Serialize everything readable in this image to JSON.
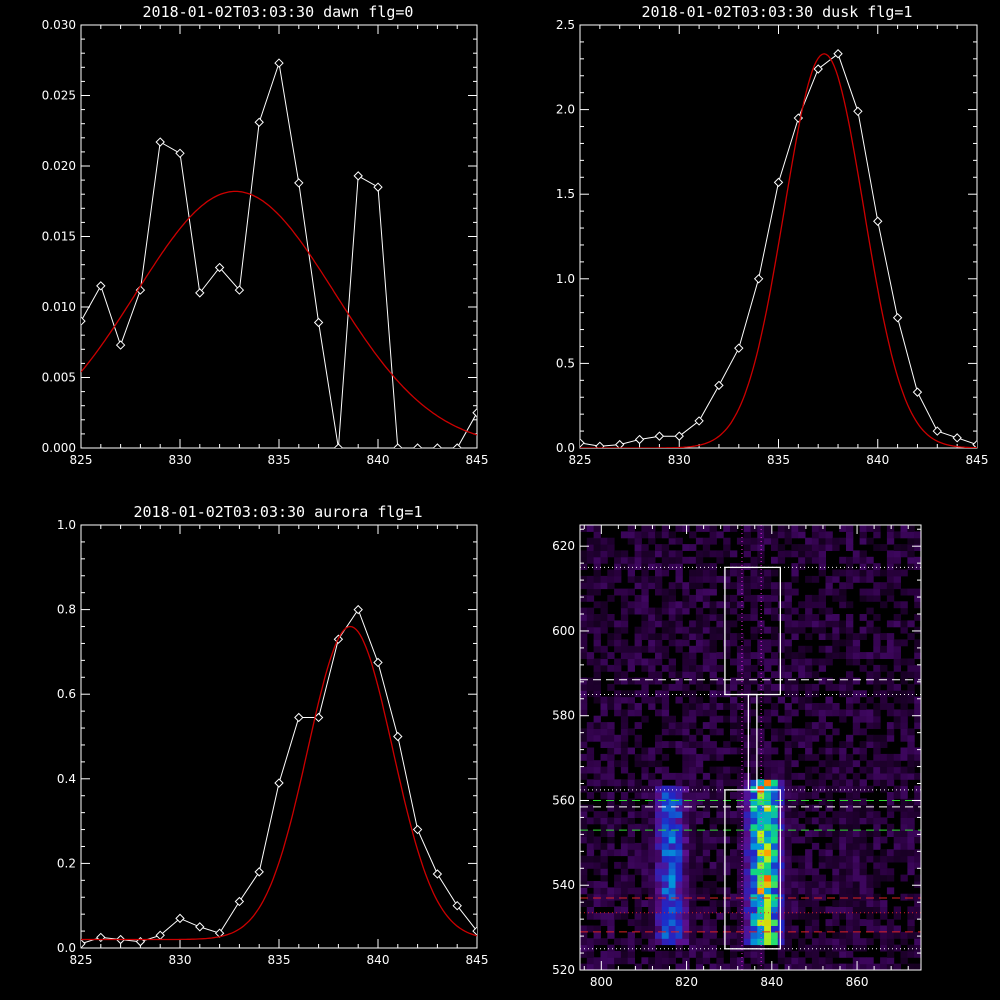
{
  "chart_data": [
    {
      "type": "line",
      "title": "2018-01-02T03:03:30 dawn flg=0",
      "xlim": [
        825,
        845
      ],
      "ylim": [
        0,
        0.03
      ],
      "xticks": [
        "825",
        "830",
        "835",
        "840",
        "845"
      ],
      "yticks": [
        "0.000",
        "0.005",
        "0.010",
        "0.015",
        "0.020",
        "0.025",
        "0.030"
      ],
      "series": [
        {
          "style": "diamond-line",
          "color": "#ffffff",
          "x": [
            825,
            826,
            827,
            828,
            829,
            830,
            831,
            832,
            833,
            834,
            835,
            836,
            837,
            838,
            839,
            840,
            841,
            842,
            843,
            844,
            845
          ],
          "values": [
            0.009,
            0.0115,
            0.0073,
            0.0112,
            0.0217,
            0.0209,
            0.011,
            0.0128,
            0.0112,
            0.0231,
            0.0273,
            0.0188,
            0.0089,
            0.0,
            0.0193,
            0.0185,
            0.0,
            0.0,
            0.0,
            0.0,
            0.0025
          ]
        },
        {
          "style": "fit",
          "color": "#cc0000",
          "gauss": {
            "amp": 0.0182,
            "center": 832.8,
            "sigma": 5.0
          }
        }
      ]
    },
    {
      "type": "line",
      "title": "2018-01-02T03:03:30 dusk flg=1",
      "xlim": [
        825,
        845
      ],
      "ylim": [
        0,
        2.5
      ],
      "xticks": [
        "825",
        "830",
        "835",
        "840",
        "845"
      ],
      "yticks": [
        "0.0",
        "0.5",
        "1.0",
        "1.5",
        "2.0",
        "2.5"
      ],
      "series": [
        {
          "style": "diamond-line",
          "color": "#ffffff",
          "x": [
            825,
            826,
            827,
            828,
            829,
            830,
            831,
            832,
            833,
            834,
            835,
            836,
            837,
            838,
            839,
            840,
            841,
            842,
            843,
            844,
            845
          ],
          "values": [
            0.03,
            0.01,
            0.02,
            0.05,
            0.07,
            0.07,
            0.16,
            0.37,
            0.59,
            1.0,
            1.57,
            1.95,
            2.24,
            2.33,
            1.99,
            1.34,
            0.77,
            0.33,
            0.1,
            0.06,
            0.02
          ]
        },
        {
          "style": "fit",
          "color": "#cc0000",
          "gauss": {
            "amp": 2.33,
            "center": 837.3,
            "sigma": 2.0
          }
        }
      ]
    },
    {
      "type": "line",
      "title": "2018-01-02T03:03:30 aurora flg=1",
      "xlim": [
        825,
        845
      ],
      "ylim": [
        0,
        1.0
      ],
      "xticks": [
        "825",
        "830",
        "835",
        "840",
        "845"
      ],
      "yticks": [
        "0.0",
        "0.2",
        "0.4",
        "0.6",
        "0.8",
        "1.0"
      ],
      "series": [
        {
          "style": "diamond-line",
          "color": "#ffffff",
          "x": [
            825,
            826,
            827,
            828,
            829,
            830,
            831,
            832,
            833,
            834,
            835,
            836,
            837,
            838,
            839,
            840,
            841,
            842,
            843,
            844,
            845
          ],
          "values": [
            0.01,
            0.025,
            0.02,
            0.015,
            0.03,
            0.07,
            0.05,
            0.035,
            0.11,
            0.18,
            0.39,
            0.545,
            0.545,
            0.73,
            0.8,
            0.675,
            0.5,
            0.28,
            0.175,
            0.1,
            0.04
          ]
        },
        {
          "style": "fit",
          "color": "#cc0000",
          "gauss": {
            "amp": 0.74,
            "center": 838.6,
            "sigma": 2.15,
            "offset": 0.02
          }
        }
      ]
    },
    {
      "type": "heatmap",
      "xlim": [
        795,
        875
      ],
      "ylim": [
        520,
        625
      ],
      "xticks": [
        "800",
        "820",
        "840",
        "860"
      ],
      "yticks": [
        "520",
        "540",
        "560",
        "580",
        "600",
        "620"
      ],
      "emission_columns": [
        {
          "x_range": [
            811,
            820
          ],
          "y_range": [
            525,
            563
          ],
          "strength": 0.55
        },
        {
          "x_range": [
            833,
            842
          ],
          "y_range": [
            525,
            564
          ],
          "strength": 0.95
        },
        {
          "x_range": [
            853,
            862
          ],
          "y_range": [
            525,
            562
          ],
          "strength": 0.12
        }
      ],
      "colors": {
        "low": "#1a0030",
        "mid": "#6a0aa0",
        "high": "#ff0000"
      },
      "overlays": {
        "white_dotted_h": [
          615,
          585,
          562.5,
          525
        ],
        "white_dashed_h": [
          588.5,
          558.5
        ],
        "green_dashed_h": [
          560,
          553
        ],
        "red_dashed_h": [
          537,
          529
        ],
        "red_dotted_h": [
          533.5
        ],
        "magenta_dotted_v": [
          833,
          837.5
        ],
        "box_upper": {
          "x": [
            829,
            842
          ],
          "y": [
            585,
            615
          ]
        },
        "box_lower": {
          "x": [
            829,
            842
          ],
          "y": [
            525,
            562.5
          ]
        },
        "connector": {
          "x": [
            834.5,
            836.5
          ],
          "y": [
            562.5,
            585
          ]
        }
      }
    }
  ]
}
